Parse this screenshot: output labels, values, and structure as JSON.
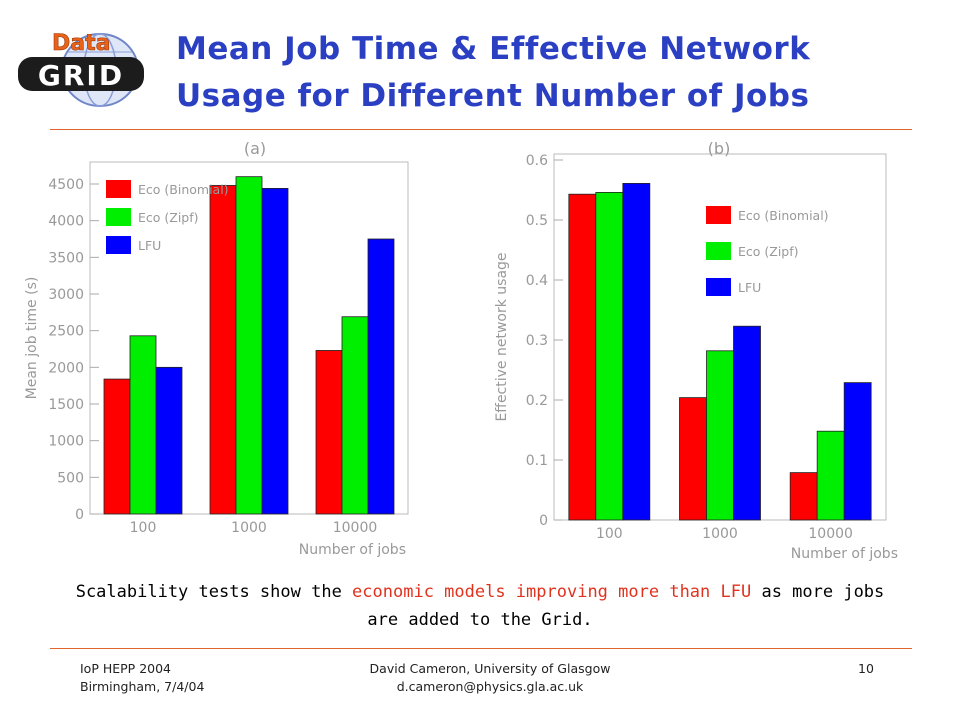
{
  "header": {
    "title_line1": "Mean Job Time & Effective Network",
    "title_line2": "Usage for Different Number of Jobs",
    "logo_top": "Data",
    "logo_bottom": "GRID"
  },
  "chart_data": [
    {
      "type": "bar",
      "title": "(a)",
      "xlabel": "Number of jobs",
      "ylabel": "Mean job time (s)",
      "categories": [
        "100",
        "1000",
        "10000"
      ],
      "ylim": [
        0,
        4800
      ],
      "yticks": [
        "0",
        "500",
        "1000",
        "1500",
        "2000",
        "2500",
        "3000",
        "3500",
        "4000",
        "4500"
      ],
      "legend_position": "top-left",
      "grid": false,
      "series": [
        {
          "name": "Eco (Binomial)",
          "color": "#ff0000",
          "values": [
            1840,
            4480,
            2230
          ]
        },
        {
          "name": "Eco (Zipf)",
          "color": "#00ee00",
          "values": [
            2430,
            4600,
            2690
          ]
        },
        {
          "name": "LFU",
          "color": "#0000ff",
          "values": [
            2000,
            4440,
            3750
          ]
        }
      ]
    },
    {
      "type": "bar",
      "title": "(b)",
      "xlabel": "Number of jobs",
      "ylabel": "Effective network usage",
      "categories": [
        "100",
        "1000",
        "10000"
      ],
      "ylim": [
        0,
        0.61
      ],
      "yticks": [
        "0",
        "0.1",
        "0.2",
        "0.3",
        "0.4",
        "0.5",
        "0.6"
      ],
      "legend_position": "top-right",
      "grid": false,
      "series": [
        {
          "name": "Eco (Binomial)",
          "color": "#ff0000",
          "values": [
            0.543,
            0.204,
            0.079
          ]
        },
        {
          "name": "Eco (Zipf)",
          "color": "#00ee00",
          "values": [
            0.546,
            0.282,
            0.148
          ]
        },
        {
          "name": "LFU",
          "color": "#0000ff",
          "values": [
            0.561,
            0.323,
            0.229
          ]
        }
      ]
    }
  ],
  "caption": {
    "part1": "Scalability tests show the ",
    "highlight": "economic models improving more than LFU",
    "part2": " as more jobs are added to the Grid."
  },
  "footer": {
    "left_line1": "IoP HEPP 2004",
    "left_line2": "Birmingham, 7/4/04",
    "center_line1": "David Cameron, University of Glasgow",
    "center_line2": "d.cameron@physics.gla.ac.uk",
    "page_number": "10"
  }
}
